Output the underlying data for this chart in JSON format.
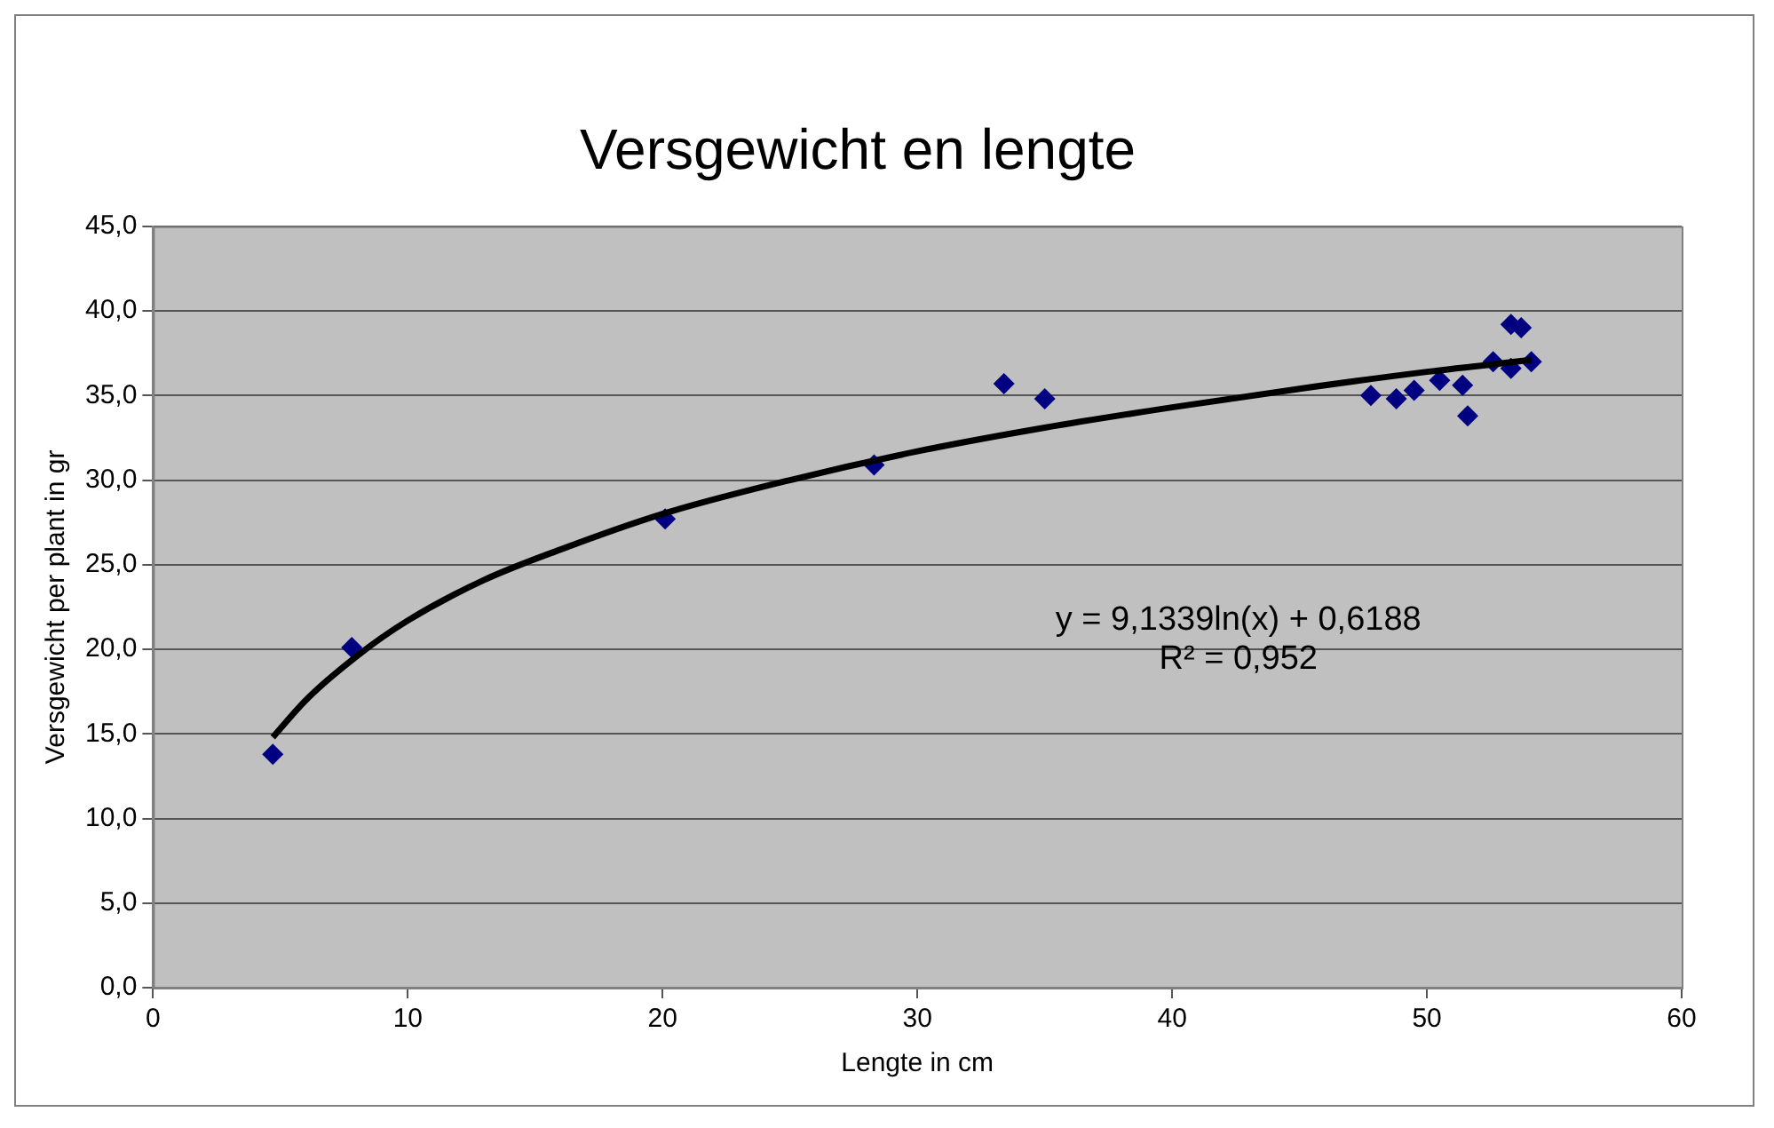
{
  "chart_data": {
    "type": "scatter",
    "title": "Versgewicht en lengte",
    "xlabel": "Lengte in cm",
    "ylabel": "Versgewicht per plant in gr",
    "annotations": [
      "y = 9,1339ln(x) + 0,6188",
      "R² = 0,952"
    ],
    "xlim": [
      0,
      60
    ],
    "xticks": [
      0,
      10,
      20,
      30,
      40,
      50,
      60
    ],
    "ylim": [
      0,
      45
    ],
    "yticks": [
      {
        "value": 0,
        "label": "0,0"
      },
      {
        "value": 5,
        "label": "5,0"
      },
      {
        "value": 10,
        "label": "10,0"
      },
      {
        "value": 15,
        "label": "15,0"
      },
      {
        "value": 20,
        "label": "20,0"
      },
      {
        "value": 25,
        "label": "25,0"
      },
      {
        "value": 30,
        "label": "30,0"
      },
      {
        "value": 35,
        "label": "35,0"
      },
      {
        "value": 40,
        "label": "40,0"
      },
      {
        "value": 45,
        "label": "45,0"
      }
    ],
    "grid": "y",
    "legend": false,
    "marker": "diamond",
    "series": [
      {
        "color": "#000080",
        "x": [
          4.7,
          7.8,
          20.1,
          28.3,
          33.4,
          35.0,
          47.8,
          48.8,
          49.5,
          50.5,
          51.4,
          51.6,
          52.6,
          53.3,
          53.7,
          53.3,
          54.1
        ],
        "values": [
          13.8,
          20.1,
          27.7,
          30.9,
          35.7,
          34.8,
          35.0,
          34.8,
          35.3,
          35.9,
          35.6,
          33.8,
          37.0,
          39.2,
          39.0,
          36.6,
          37.0
        ]
      },
      {
        "type": "line",
        "color": "#000000",
        "marker": "none",
        "x": [
          4.7,
          6,
          8,
          10,
          13,
          16,
          20,
          25,
          30,
          35,
          40,
          45,
          50,
          54.1
        ],
        "values": [
          14.8,
          17.0,
          19.6,
          21.7,
          24.1,
          25.9,
          28.0,
          30.0,
          31.7,
          33.1,
          34.3,
          35.4,
          36.4,
          37.1
        ]
      }
    ]
  }
}
